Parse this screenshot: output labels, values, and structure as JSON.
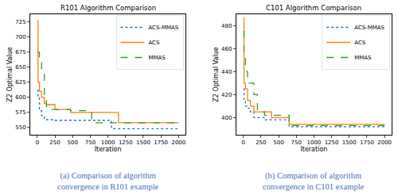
{
  "chart_data": [
    {
      "type": "line",
      "title": "R101 Algorithm Comparison",
      "x_label": "Iteration",
      "y_label": "Z2 Optimal Value",
      "caption": [
        "(a) Comparison of algorithm",
        "convergence in R101 example"
      ],
      "x": [
        0,
        10,
        30,
        60,
        100,
        130,
        250,
        470,
        770,
        1050,
        1150,
        2000
      ],
      "series": [
        {
          "name": "ACS-MMAS",
          "color": "#1f77b4",
          "line_style": "dotted",
          "values": [
            612,
            600,
            578,
            570,
            565,
            563,
            562,
            562,
            562,
            548,
            548,
            548
          ]
        },
        {
          "name": "ACS",
          "color": "#ff7f0e",
          "line_style": "solid",
          "values": [
            728,
            625,
            610,
            600,
            590,
            588,
            580,
            575,
            575,
            575,
            558,
            558
          ]
        },
        {
          "name": "MMAS",
          "color": "#2ca02c",
          "line_style": "dashed",
          "values": [
            675,
            675,
            660,
            640,
            600,
            580,
            580,
            578,
            558,
            558,
            558,
            558
          ]
        }
      ],
      "xlim": [
        -100,
        2100
      ],
      "xticks": [
        0,
        250,
        500,
        750,
        1000,
        1250,
        1500,
        1750,
        2000
      ],
      "ylim": [
        538,
        738
      ],
      "yticks": [
        550,
        575,
        600,
        625,
        650,
        675,
        700,
        725
      ],
      "grid": false,
      "legend": "upper right"
    },
    {
      "type": "line",
      "title": "C101 Algorithm Comparison",
      "x_label": "Iteration",
      "y_label": "Z2 Optimal Value",
      "caption": [
        "(b) Comparison of algorithm",
        "convergence in C101 example"
      ],
      "x": [
        0,
        10,
        30,
        60,
        100,
        150,
        200,
        300,
        400,
        650,
        2000
      ],
      "series": [
        {
          "name": "ACS-MMAS",
          "color": "#1f77b4",
          "line_style": "dotted",
          "values": [
            425,
            415,
            410,
            408,
            405,
            400,
            400,
            398,
            398,
            392,
            392
          ]
        },
        {
          "name": "ACS",
          "color": "#ff7f0e",
          "line_style": "solid",
          "values": [
            487,
            430,
            425,
            415,
            410,
            405,
            405,
            405,
            400,
            394,
            394
          ]
        },
        {
          "name": "MMAS",
          "color": "#2ca02c",
          "line_style": "dashed",
          "values": [
            475,
            455,
            440,
            430,
            430,
            420,
            405,
            402,
            402,
            393,
            393
          ]
        }
      ],
      "xlim": [
        -100,
        2100
      ],
      "xticks": [
        0,
        250,
        500,
        750,
        1000,
        1250,
        1500,
        1750,
        2000
      ],
      "ylim": [
        385,
        490
      ],
      "yticks": [
        400,
        420,
        440,
        460,
        480
      ],
      "grid": false,
      "legend": "upper right"
    }
  ]
}
